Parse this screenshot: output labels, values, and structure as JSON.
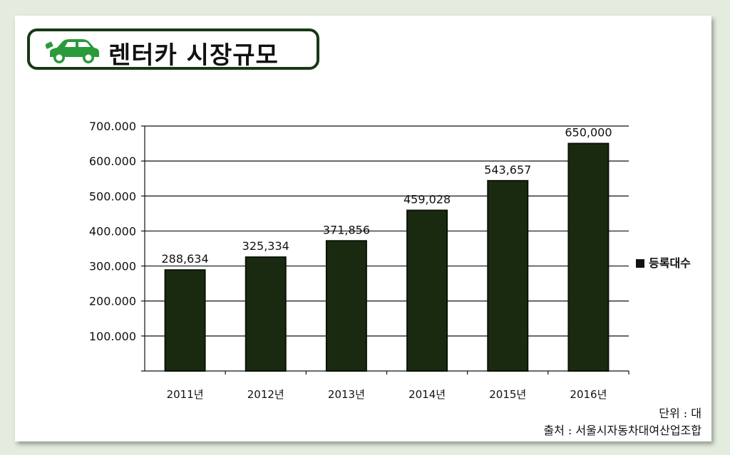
{
  "title": "렌터카 시장규모",
  "unit_note": "단위 : 대",
  "source_note": "출처 : 서울시자동차대여산업조합",
  "colors": {
    "bar": "#1a2a10",
    "frame": "#153a14",
    "car": "#2a9a3a"
  },
  "icons": {
    "title_icon": "car-icon"
  },
  "chart_data": {
    "type": "bar",
    "title": "렌터카 시장규모",
    "categories": [
      "2011년",
      "2012년",
      "2013년",
      "2014년",
      "2015년",
      "2016년"
    ],
    "series": [
      {
        "name": "등록대수",
        "values": [
          288634,
          325334,
          371856,
          459028,
          543657,
          650000
        ]
      }
    ],
    "data_labels": [
      "288,634",
      "325,334",
      "371,856",
      "459,028",
      "543,657",
      "650,000"
    ],
    "y_ticks": [
      0,
      100000,
      200000,
      300000,
      400000,
      500000,
      600000,
      700000
    ],
    "y_tick_labels": [
      "",
      "100.000",
      "200.000",
      "300.000",
      "400.000",
      "500.000",
      "600.000",
      "700.000"
    ],
    "ylim": [
      0,
      700000
    ],
    "grid": true,
    "legend_position": "right",
    "xlabel": "",
    "ylabel": ""
  }
}
